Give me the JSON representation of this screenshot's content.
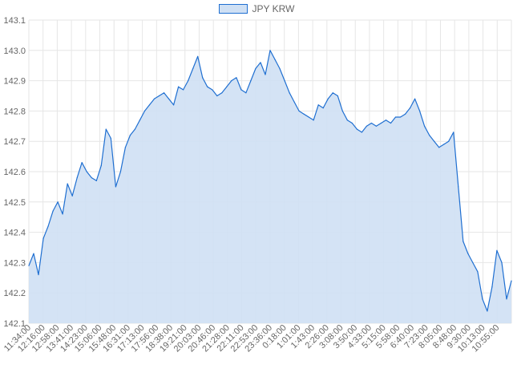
{
  "chart_data": {
    "type": "area",
    "series": [
      {
        "name": "JPY KRW",
        "values": [
          142.29,
          142.33,
          142.26,
          142.38,
          142.42,
          142.47,
          142.5,
          142.46,
          142.56,
          142.52,
          142.58,
          142.63,
          142.6,
          142.58,
          142.57,
          142.62,
          142.74,
          142.71,
          142.55,
          142.6,
          142.68,
          142.72,
          142.74,
          142.77,
          142.8,
          142.82,
          142.84,
          142.85,
          142.86,
          142.84,
          142.82,
          142.88,
          142.87,
          142.9,
          142.94,
          142.98,
          142.91,
          142.88,
          142.87,
          142.85,
          142.86,
          142.88,
          142.9,
          142.91,
          142.87,
          142.86,
          142.9,
          142.94,
          142.96,
          142.92,
          143.0,
          142.97,
          142.94,
          142.9,
          142.86,
          142.83,
          142.8,
          142.79,
          142.78,
          142.77,
          142.82,
          142.81,
          142.84,
          142.86,
          142.85,
          142.8,
          142.77,
          142.76,
          142.74,
          142.73,
          142.75,
          142.76,
          142.75,
          142.76,
          142.77,
          142.76,
          142.78,
          142.78,
          142.79,
          142.81,
          142.84,
          142.8,
          142.75,
          142.72,
          142.7,
          142.68,
          142.69,
          142.7,
          142.73,
          142.55,
          142.37,
          142.33,
          142.3,
          142.27,
          142.18,
          142.14,
          142.22,
          142.34,
          142.3,
          142.18,
          142.24
        ]
      }
    ],
    "x_tick_labels": [
      "11:34:00",
      "12:16:00",
      "12:58:00",
      "13:41:00",
      "14:23:00",
      "15:06:00",
      "15:48:00",
      "16:31:00",
      "17:13:00",
      "17:56:00",
      "18:38:00",
      "19:21:00",
      "20:03:00",
      "20:46:00",
      "21:28:00",
      "22:11:00",
      "22:53:00",
      "23:36:00",
      "0:18:00",
      "1:01:00",
      "1:43:00",
      "2:26:00",
      "3:08:00",
      "3:50:00",
      "4:33:00",
      "5:15:00",
      "5:58:00",
      "6:40:00",
      "7:23:00",
      "8:05:00",
      "8:48:00",
      "9:30:00",
      "10:13:00",
      "10:55:00"
    ],
    "y_ticks": [
      142.1,
      142.2,
      142.3,
      142.4,
      142.5,
      142.6,
      142.7,
      142.8,
      142.9,
      143.0,
      143.1
    ],
    "ylim": [
      142.1,
      143.1
    ],
    "legend_position": "top",
    "grid": true,
    "colors": {
      "line": "#1f6fd1",
      "fill": "#cfe0f4",
      "grid": "#e6e6e6",
      "text": "#666666"
    }
  }
}
